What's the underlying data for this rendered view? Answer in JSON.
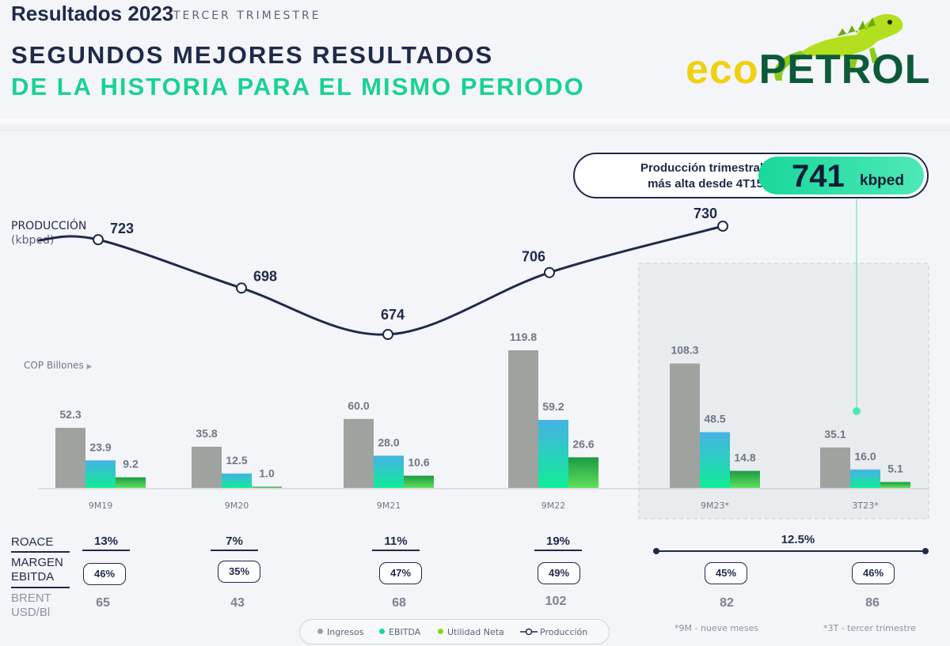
{
  "header": {
    "year_title": "Resultados 2023",
    "subtitle": "TERCER TRIMESTRE",
    "headline_line1": "SEGUNDOS MEJORES RESULTADOS",
    "headline_line2": "DE LA HISTORIA PARA EL MISMO PERIODO"
  },
  "logo": {
    "part1": "eco",
    "part2": "PETROL"
  },
  "callout": {
    "text_line1": "Producción trimestral",
    "text_line2": "más alta desde 4T15",
    "value": "741",
    "unit": "kbped"
  },
  "colors": {
    "navy": "#1f2a4a",
    "green_accent": "#18d292",
    "gray_bar": "#9ea3a0",
    "ebitda_top": "#3fb8e0",
    "ebitda_bottom": "#14e89a",
    "net_top": "#1fa84a",
    "net_bottom": "#5fdc5a"
  },
  "chart_data": {
    "type": "bar+line",
    "production_label": "PRODUCCIÓN",
    "production_unit": "(kbped)",
    "bars_unit_label": "COP Billones",
    "categories": [
      "9M19",
      "9M20",
      "9M21",
      "9M22",
      "9M23*",
      "3T23*"
    ],
    "series": [
      {
        "name": "Ingresos",
        "values": [
          52.3,
          35.8,
          60.0,
          119.8,
          108.3,
          35.1
        ],
        "labels": [
          "52.3",
          "35.8",
          "60.0",
          "119.8",
          "108.3",
          "35.1"
        ]
      },
      {
        "name": "EBITDA",
        "values": [
          23.9,
          12.5,
          28.0,
          59.2,
          48.5,
          16.0
        ],
        "labels": [
          "23.9",
          "12.5",
          "28.0",
          "59.2",
          "48.5",
          "16.0"
        ]
      },
      {
        "name": "Utilidad Neta",
        "values": [
          9.2,
          1.0,
          10.6,
          26.6,
          14.8,
          5.1
        ],
        "labels": [
          "9.2",
          "1.0",
          "10.6",
          "26.6",
          "14.8",
          "5.1"
        ]
      }
    ],
    "production": {
      "name": "Producción",
      "categories": [
        "9M19",
        "9M20",
        "9M21",
        "9M22",
        "9M23*"
      ],
      "values": [
        723,
        698,
        674,
        706,
        730
      ],
      "labels": [
        "723",
        "698",
        "674",
        "706",
        "730"
      ]
    },
    "ylim_bars": [
      0,
      130
    ],
    "ylim_production": [
      660,
      740
    ]
  },
  "kpis": {
    "roace_label": "ROACE",
    "margin_label_1": "MARGEN",
    "margin_label_2": "EBITDA",
    "brent_label_1": "BRENT",
    "brent_label_2": "USD/Bl",
    "roace": [
      "13%",
      "7%",
      "11%",
      "19%",
      "12.5%"
    ],
    "margin": [
      "46%",
      "35%",
      "47%",
      "49%",
      "45%",
      "46%"
    ],
    "brent": [
      "65",
      "43",
      "68",
      "102",
      "82",
      "86"
    ]
  },
  "legend": {
    "items": [
      "Ingresos",
      "EBITDA",
      "Utilidad Neta",
      "Producción"
    ]
  },
  "footnotes": {
    "nine_months": "*9M - nueve meses",
    "third_quarter": "*3T - tercer trimestre"
  }
}
